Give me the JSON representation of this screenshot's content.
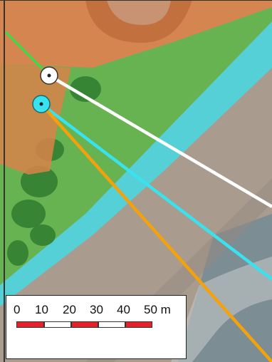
{
  "map": {
    "colors": {
      "orange_zone": "#d9834a",
      "green_zone": "#5fb54a",
      "cyan_zone": "#4ed5dd",
      "sand": "#a99c8f",
      "water": "#7d8d94",
      "line_white": "#ffffff",
      "line_cyan": "#38e3ef",
      "line_orange": "#f4a20c",
      "line_green": "#3fd84a"
    },
    "markers": [
      {
        "name": "white-station-marker",
        "color": "#ffffff"
      },
      {
        "name": "cyan-station-marker",
        "color": "#38e3ef"
      }
    ]
  },
  "scale_bar": {
    "labels": [
      "0",
      "10",
      "20",
      "30",
      "40",
      "50 m"
    ],
    "segment_colors": [
      "#e8202a",
      "#ffffff",
      "#e8202a",
      "#ffffff",
      "#e8202a"
    ]
  }
}
